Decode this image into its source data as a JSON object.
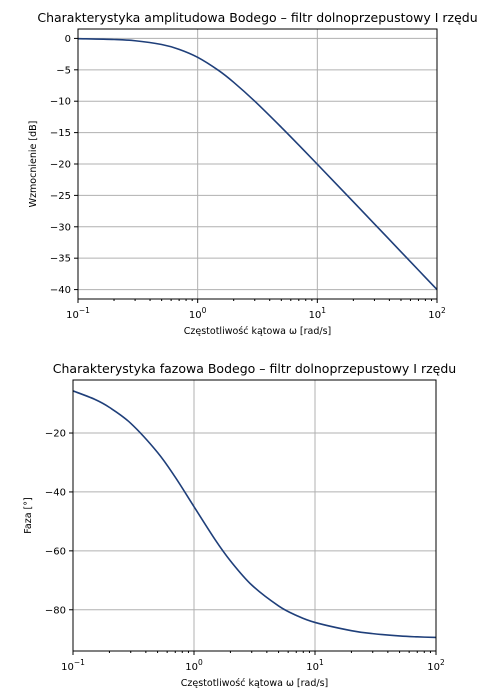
{
  "chart_data": [
    {
      "type": "line",
      "title": "Charakterystyka amplitudowa Bodego – filtr dolnoprzepustowy I rzędu",
      "xlabel": "Częstotliwość kątowa ω [rad/s]",
      "ylabel": "Wzmocnienie [dB]",
      "xscale": "log",
      "xlim": [
        0.1,
        100
      ],
      "ylim": [
        -41.5,
        1.5
      ],
      "xticks": [
        0.1,
        1,
        10,
        100
      ],
      "xtick_labels": [
        {
          "base": "10",
          "exp": "−1"
        },
        {
          "base": "10",
          "exp": "0"
        },
        {
          "base": "10",
          "exp": "1"
        },
        {
          "base": "10",
          "exp": "2"
        }
      ],
      "yticks": [
        0,
        -5,
        -10,
        -15,
        -20,
        -25,
        -30,
        -35,
        -40
      ],
      "ytick_labels": [
        "0",
        "−5",
        "−10",
        "−15",
        "−20",
        "−25",
        "−30",
        "−35",
        "−40"
      ],
      "grid": true,
      "series": [
        {
          "x": [
            0.1,
            0.2,
            0.3,
            0.5,
            0.7,
            1,
            1.5,
            2,
            3,
            5,
            7,
            10,
            20,
            30,
            50,
            70,
            100
          ],
          "y": [
            -0.04,
            -0.17,
            -0.37,
            -0.97,
            -1.74,
            -3.01,
            -5.12,
            -6.99,
            -10.0,
            -14.15,
            -16.99,
            -20.04,
            -26.03,
            -29.54,
            -33.98,
            -36.9,
            -40.0
          ],
          "color": "#1f3f7a"
        }
      ]
    },
    {
      "type": "line",
      "title": "Charakterystyka fazowa Bodego – filtr dolnoprzepustowy I rzędu",
      "xlabel": "Częstotliwość kątowa ω [rad/s]",
      "ylabel": "Faza [°]",
      "xscale": "log",
      "xlim": [
        0.1,
        100
      ],
      "ylim": [
        -94,
        -2
      ],
      "xticks": [
        0.1,
        1,
        10,
        100
      ],
      "xtick_labels": [
        {
          "base": "10",
          "exp": "−1"
        },
        {
          "base": "10",
          "exp": "0"
        },
        {
          "base": "10",
          "exp": "1"
        },
        {
          "base": "10",
          "exp": "2"
        }
      ],
      "yticks": [
        -20,
        -40,
        -60,
        -80
      ],
      "ytick_labels": [
        "−20",
        "−40",
        "−60",
        "−80"
      ],
      "grid": true,
      "series": [
        {
          "x": [
            0.1,
            0.15,
            0.2,
            0.3,
            0.5,
            0.7,
            1,
            1.5,
            2,
            3,
            5,
            7,
            10,
            20,
            30,
            50,
            70,
            100
          ],
          "y": [
            -5.7,
            -8.5,
            -11.3,
            -16.7,
            -26.6,
            -35.0,
            -45.0,
            -56.3,
            -63.4,
            -71.6,
            -78.7,
            -81.9,
            -84.3,
            -87.1,
            -88.1,
            -88.9,
            -89.2,
            -89.4
          ],
          "color": "#1f3f7a"
        }
      ]
    }
  ]
}
